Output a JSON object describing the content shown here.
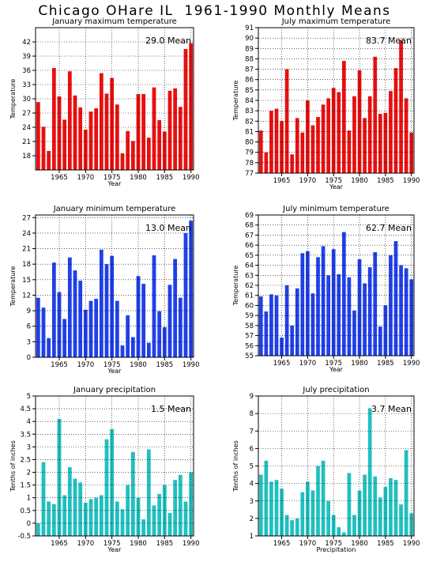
{
  "page": {
    "title": "Chicago OHare IL  1961-1990 Monthly Means"
  },
  "chart_data": [
    {
      "type": "bar",
      "title": "January maximum temperature",
      "annotation": "29.0 Mean",
      "xlabel": "Year",
      "ylabel": "Temperature",
      "color": "#e81010",
      "ylim": [
        15,
        45
      ],
      "yticks": [
        18,
        21,
        24,
        27,
        30,
        33,
        36,
        39,
        42
      ],
      "xlim": [
        1960.5,
        1990.5
      ],
      "xticks": [
        1965,
        1970,
        1975,
        1980,
        1985,
        1990
      ],
      "x": [
        1961,
        1962,
        1963,
        1964,
        1965,
        1966,
        1967,
        1968,
        1969,
        1970,
        1971,
        1972,
        1973,
        1974,
        1975,
        1976,
        1977,
        1978,
        1979,
        1980,
        1981,
        1982,
        1983,
        1984,
        1985,
        1986,
        1987,
        1988,
        1989,
        1990
      ],
      "values": [
        29.3,
        24.1,
        19.0,
        36.5,
        30.5,
        25.6,
        35.8,
        30.7,
        28.2,
        23.5,
        27.3,
        28.0,
        35.4,
        31.1,
        34.4,
        28.8,
        18.5,
        23.2,
        21.1,
        31.0,
        31.0,
        21.8,
        32.4,
        25.5,
        23.1,
        31.7,
        32.2,
        28.3,
        40.5,
        41.7
      ]
    },
    {
      "type": "bar",
      "title": "July maximum temperature",
      "annotation": "83.7 Mean",
      "xlabel": "Year",
      "ylabel": "Temperature",
      "color": "#e81010",
      "ylim": [
        77,
        91
      ],
      "yticks": [
        77,
        78,
        79,
        80,
        81,
        82,
        83,
        84,
        85,
        86,
        87,
        88,
        89,
        90,
        91
      ],
      "xlim": [
        1960.5,
        1990.5
      ],
      "xticks": [
        1965,
        1970,
        1975,
        1980,
        1985,
        1990
      ],
      "x": [
        1961,
        1962,
        1963,
        1964,
        1965,
        1966,
        1967,
        1968,
        1969,
        1970,
        1971,
        1972,
        1973,
        1974,
        1975,
        1976,
        1977,
        1978,
        1979,
        1980,
        1981,
        1982,
        1983,
        1984,
        1985,
        1986,
        1987,
        1988,
        1989,
        1990
      ],
      "values": [
        81.1,
        79.0,
        83.0,
        83.2,
        82.0,
        87.0,
        78.8,
        82.3,
        80.9,
        84.0,
        81.6,
        82.4,
        83.6,
        84.2,
        85.2,
        84.8,
        87.8,
        81.1,
        84.4,
        86.9,
        82.3,
        84.4,
        88.2,
        82.7,
        82.8,
        84.9,
        87.1,
        89.8,
        84.2,
        80.9
      ]
    },
    {
      "type": "bar",
      "title": "January minimum temperature",
      "annotation": "13.0 Mean",
      "xlabel": "Year",
      "ylabel": "Temperature",
      "color": "#2040e8",
      "ylim": [
        0,
        27.5
      ],
      "yticks": [
        0,
        3,
        6,
        9,
        12,
        15,
        18,
        21,
        24,
        27
      ],
      "xlim": [
        1960.5,
        1990.5
      ],
      "xticks": [
        1965,
        1970,
        1975,
        1980,
        1985,
        1990
      ],
      "x": [
        1961,
        1962,
        1963,
        1964,
        1965,
        1966,
        1967,
        1968,
        1969,
        1970,
        1971,
        1972,
        1973,
        1974,
        1975,
        1976,
        1977,
        1978,
        1979,
        1980,
        1981,
        1982,
        1983,
        1984,
        1985,
        1986,
        1987,
        1988,
        1989,
        1990
      ],
      "values": [
        11.5,
        9.6,
        3.7,
        18.3,
        12.6,
        7.4,
        19.3,
        16.8,
        14.8,
        9.2,
        10.9,
        11.3,
        20.8,
        18.0,
        19.6,
        10.9,
        2.3,
        8.1,
        3.9,
        15.7,
        14.2,
        2.8,
        19.7,
        8.9,
        5.8,
        14.0,
        19.0,
        11.5,
        24.0,
        26.4
      ]
    },
    {
      "type": "bar",
      "title": "July minimum temperature",
      "annotation": "62.7 Mean",
      "xlabel": "Year",
      "ylabel": "Temperature",
      "color": "#2040e8",
      "ylim": [
        55,
        69
      ],
      "yticks": [
        55,
        56,
        57,
        58,
        59,
        60,
        61,
        62,
        63,
        64,
        65,
        66,
        67,
        68,
        69
      ],
      "xlim": [
        1960.5,
        1990.5
      ],
      "xticks": [
        1965,
        1970,
        1975,
        1980,
        1985,
        1990
      ],
      "x": [
        1961,
        1962,
        1963,
        1964,
        1965,
        1966,
        1967,
        1968,
        1969,
        1970,
        1971,
        1972,
        1973,
        1974,
        1975,
        1976,
        1977,
        1978,
        1979,
        1980,
        1981,
        1982,
        1983,
        1984,
        1985,
        1986,
        1987,
        1988,
        1989,
        1990
      ],
      "values": [
        60.9,
        59.4,
        61.1,
        61.0,
        56.8,
        62.0,
        58.0,
        61.7,
        65.2,
        65.4,
        61.2,
        64.8,
        65.9,
        63.0,
        65.6,
        63.1,
        67.3,
        62.8,
        59.5,
        64.6,
        62.2,
        63.8,
        65.3,
        57.9,
        60.0,
        65.0,
        66.4,
        64.0,
        63.7,
        62.6
      ]
    },
    {
      "type": "bar",
      "title": "January precipitation",
      "annotation": "1.5 Mean",
      "xlabel": "Year",
      "ylabel": "Tenths of inches",
      "color": "#20c0c0",
      "ylim": [
        -0.5,
        5
      ],
      "yticks": [
        -0.5,
        0,
        0.5,
        1,
        1.5,
        2,
        2.5,
        3,
        3.5,
        4,
        4.5,
        5
      ],
      "xlim": [
        1960.5,
        1990.5
      ],
      "xticks": [
        1965,
        1970,
        1975,
        1980,
        1985,
        1990
      ],
      "x": [
        1961,
        1962,
        1963,
        1964,
        1965,
        1966,
        1967,
        1968,
        1969,
        1970,
        1971,
        1972,
        1973,
        1974,
        1975,
        1976,
        1977,
        1978,
        1979,
        1980,
        1981,
        1982,
        1983,
        1984,
        1985,
        1986,
        1987,
        1988,
        1989,
        1990
      ],
      "values": [
        0.0,
        2.4,
        0.85,
        0.75,
        4.1,
        1.1,
        2.2,
        1.75,
        1.6,
        0.8,
        0.95,
        1.0,
        1.1,
        3.3,
        3.7,
        0.85,
        0.55,
        1.5,
        2.8,
        1.0,
        0.15,
        2.9,
        0.7,
        1.15,
        1.5,
        0.4,
        1.7,
        1.9,
        0.85,
        2.0
      ]
    },
    {
      "type": "bar",
      "title": "July precipitation",
      "annotation": "3.7 Mean",
      "xlabel": "Precipitation",
      "ylabel": "Tenths of inches",
      "color": "#20c0c0",
      "ylim": [
        1,
        9
      ],
      "yticks": [
        1,
        2,
        3,
        4,
        5,
        6,
        7,
        8,
        9
      ],
      "xlim": [
        1960.5,
        1990.5
      ],
      "xticks": [
        1965,
        1970,
        1975,
        1980,
        1985,
        1990
      ],
      "x": [
        1961,
        1962,
        1963,
        1964,
        1965,
        1966,
        1967,
        1968,
        1969,
        1970,
        1971,
        1972,
        1973,
        1974,
        1975,
        1976,
        1977,
        1978,
        1979,
        1980,
        1981,
        1982,
        1983,
        1984,
        1985,
        1986,
        1987,
        1988,
        1989,
        1990
      ],
      "values": [
        4.5,
        5.3,
        4.1,
        4.2,
        3.7,
        2.2,
        1.9,
        2.0,
        3.5,
        4.1,
        3.6,
        5.0,
        5.3,
        3.0,
        2.2,
        1.5,
        1.2,
        4.6,
        2.2,
        3.6,
        4.5,
        8.3,
        4.4,
        3.2,
        3.8,
        4.3,
        4.2,
        2.8,
        5.9,
        2.3
      ]
    }
  ]
}
